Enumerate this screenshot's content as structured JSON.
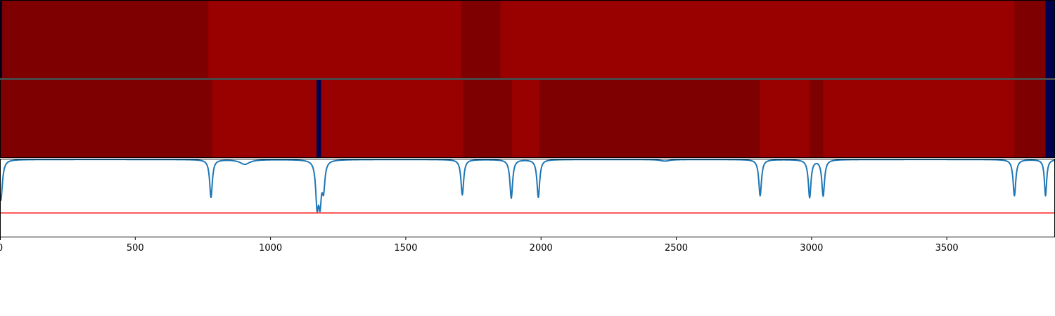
{
  "chart_data": {
    "type": "heatmap",
    "xlim": [
      0,
      3900
    ],
    "x_ticks": [
      0,
      500,
      1000,
      1500,
      2000,
      2500,
      3000,
      3500
    ],
    "x_tick_labels": [
      "0",
      "500",
      "1000",
      "1500",
      "2000",
      "2500",
      "3000",
      "3500"
    ],
    "grid": false,
    "legend": "none",
    "colors": {
      "dark_red": "#7f0000",
      "red": "#990000",
      "navy": "#000050",
      "line": "#1f77b4",
      "threshold": "#ff0000"
    },
    "segment_tracks": [
      {
        "segments": [
          {
            "start": 0,
            "end": 8,
            "color": "navy"
          },
          {
            "start": 8,
            "end": 770,
            "color": "dark_red"
          },
          {
            "start": 770,
            "end": 1705,
            "color": "red"
          },
          {
            "start": 1705,
            "end": 1850,
            "color": "dark_red"
          },
          {
            "start": 1850,
            "end": 3750,
            "color": "red"
          },
          {
            "start": 3750,
            "end": 3865,
            "color": "dark_red"
          },
          {
            "start": 3865,
            "end": 3900,
            "color": "navy"
          }
        ]
      },
      {
        "segments": [
          {
            "start": 0,
            "end": 785,
            "color": "dark_red"
          },
          {
            "start": 785,
            "end": 1170,
            "color": "red"
          },
          {
            "start": 1170,
            "end": 1187,
            "color": "navy"
          },
          {
            "start": 1187,
            "end": 1712,
            "color": "red"
          },
          {
            "start": 1712,
            "end": 1893,
            "color": "dark_red"
          },
          {
            "start": 1893,
            "end": 1993,
            "color": "red"
          },
          {
            "start": 1993,
            "end": 2810,
            "color": "dark_red"
          },
          {
            "start": 2810,
            "end": 2993,
            "color": "red"
          },
          {
            "start": 2993,
            "end": 3043,
            "color": "dark_red"
          },
          {
            "start": 3043,
            "end": 3750,
            "color": "red"
          },
          {
            "start": 3750,
            "end": 3865,
            "color": "dark_red"
          },
          {
            "start": 3865,
            "end": 3900,
            "color": "navy"
          }
        ]
      }
    ],
    "line_series": {
      "ylim": [
        0,
        1
      ],
      "baseline": 0.99,
      "threshold": 0.31,
      "dips": [
        {
          "x": 3,
          "depth": 0.52,
          "width": 7
        },
        {
          "x": 780,
          "depth": 0.48,
          "width": 6
        },
        {
          "x": 905,
          "depth": 0.06,
          "width": 22
        },
        {
          "x": 1172,
          "depth": 0.53,
          "width": 6
        },
        {
          "x": 1183,
          "depth": 0.48,
          "width": 6
        },
        {
          "x": 1196,
          "depth": 0.34,
          "width": 6
        },
        {
          "x": 1709,
          "depth": 0.45,
          "width": 6
        },
        {
          "x": 1890,
          "depth": 0.49,
          "width": 6
        },
        {
          "x": 1990,
          "depth": 0.48,
          "width": 6
        },
        {
          "x": 2458,
          "depth": 0.02,
          "width": 20
        },
        {
          "x": 2810,
          "depth": 0.46,
          "width": 6
        },
        {
          "x": 2993,
          "depth": 0.48,
          "width": 6
        },
        {
          "x": 3043,
          "depth": 0.46,
          "width": 6
        },
        {
          "x": 3750,
          "depth": 0.46,
          "width": 6
        },
        {
          "x": 3865,
          "depth": 0.46,
          "width": 5
        }
      ]
    }
  }
}
